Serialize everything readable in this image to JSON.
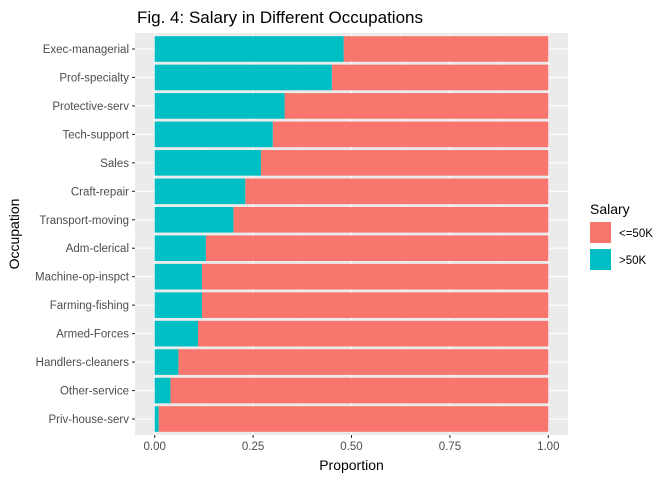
{
  "chart_data": {
    "type": "bar",
    "orientation": "horizontal",
    "stacked": "fill",
    "title": "Fig. 4: Salary in Different Occupations",
    "xlabel": "Proportion",
    "ylabel": "Occupation",
    "xlim": [
      0,
      1
    ],
    "x_ticks": [
      "0.00",
      "0.25",
      "0.50",
      "0.75",
      "1.00"
    ],
    "grid": true,
    "legend_title": "Salary",
    "legend_position": "right",
    "categories": [
      "Exec-managerial",
      "Prof-specialty",
      "Protective-serv",
      "Tech-support",
      "Sales",
      "Craft-repair",
      "Transport-moving",
      "Adm-clerical",
      "Machine-op-inspct",
      "Farming-fishing",
      "Armed-Forces",
      "Handlers-cleaners",
      "Other-service",
      "Priv-house-serv"
    ],
    "series": [
      {
        "name": ">50K",
        "color": "#00BFC4",
        "values": [
          0.48,
          0.45,
          0.33,
          0.3,
          0.27,
          0.23,
          0.2,
          0.13,
          0.12,
          0.12,
          0.11,
          0.06,
          0.04,
          0.01
        ]
      },
      {
        "name": "<=50K",
        "color": "#F8766D",
        "values": [
          0.52,
          0.55,
          0.67,
          0.7,
          0.73,
          0.77,
          0.8,
          0.87,
          0.88,
          0.88,
          0.89,
          0.94,
          0.96,
          0.99
        ]
      }
    ],
    "legend_order": [
      "<=50K",
      ">50K"
    ]
  }
}
